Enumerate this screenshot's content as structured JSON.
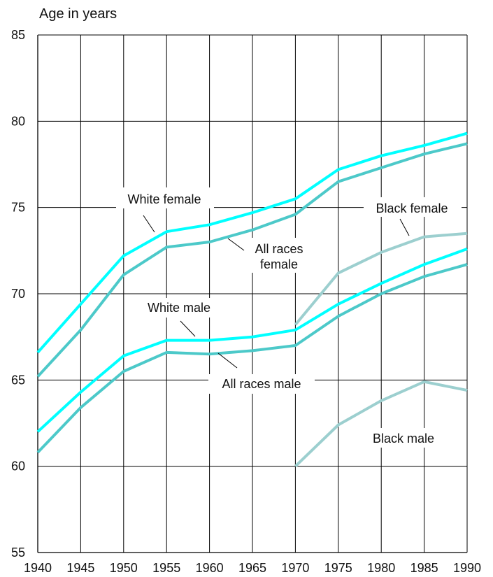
{
  "chart_data": {
    "type": "line",
    "title": "",
    "xlabel": "",
    "ylabel": "Age in years",
    "x": [
      1940,
      1945,
      1950,
      1955,
      1960,
      1965,
      1970,
      1975,
      1980,
      1985,
      1990
    ],
    "xticks": [
      "1940",
      "1945",
      "1950",
      "1955",
      "1960",
      "1965",
      "1970",
      "1975",
      "1980",
      "1985",
      "1990"
    ],
    "yticks": [
      "55",
      "60",
      "65",
      "70",
      "75",
      "80",
      "85"
    ],
    "xlim": [
      1940,
      1990
    ],
    "ylim": [
      55,
      85
    ],
    "grid": true,
    "series": [
      {
        "name": "White female",
        "color": "#00ffff",
        "x": [
          1940,
          1945,
          1950,
          1955,
          1960,
          1965,
          1970,
          1975,
          1980,
          1985,
          1990
        ],
        "values": [
          66.6,
          69.4,
          72.2,
          73.6,
          74.0,
          74.7,
          75.5,
          77.2,
          78.0,
          78.6,
          79.3
        ]
      },
      {
        "name": "All races female",
        "color": "#4cc9c9",
        "x": [
          1940,
          1945,
          1950,
          1955,
          1960,
          1965,
          1970,
          1975,
          1980,
          1985,
          1990
        ],
        "values": [
          65.2,
          67.9,
          71.1,
          72.7,
          73.0,
          73.7,
          74.6,
          76.5,
          77.3,
          78.1,
          78.7
        ]
      },
      {
        "name": "White male",
        "color": "#00ffff",
        "x": [
          1940,
          1945,
          1950,
          1955,
          1960,
          1965,
          1970,
          1975,
          1980,
          1985,
          1990
        ],
        "values": [
          62.0,
          64.3,
          66.4,
          67.3,
          67.3,
          67.5,
          67.9,
          69.4,
          70.6,
          71.7,
          72.6
        ]
      },
      {
        "name": "All races male",
        "color": "#4cc9c9",
        "x": [
          1940,
          1945,
          1950,
          1955,
          1960,
          1965,
          1970,
          1975,
          1980,
          1985,
          1990
        ],
        "values": [
          60.8,
          63.4,
          65.5,
          66.6,
          66.5,
          66.7,
          67.0,
          68.7,
          70.0,
          71.0,
          71.7
        ]
      },
      {
        "name": "Black female",
        "color": "#9ccfcf",
        "x": [
          1970,
          1975,
          1980,
          1985,
          1990
        ],
        "values": [
          68.2,
          71.2,
          72.4,
          73.3,
          73.5
        ]
      },
      {
        "name": "Black male",
        "color": "#9ccfcf",
        "x": [
          1970,
          1975,
          1980,
          1985,
          1990
        ],
        "values": [
          60.0,
          62.4,
          63.8,
          64.9,
          64.4
        ]
      }
    ],
    "annotations": [
      {
        "lines": [
          "White female"
        ]
      },
      {
        "lines": [
          "All races",
          "female"
        ]
      },
      {
        "lines": [
          "Black female"
        ]
      },
      {
        "lines": [
          "White male"
        ]
      },
      {
        "lines": [
          "All races male"
        ]
      },
      {
        "lines": [
          "Black male"
        ]
      }
    ]
  }
}
